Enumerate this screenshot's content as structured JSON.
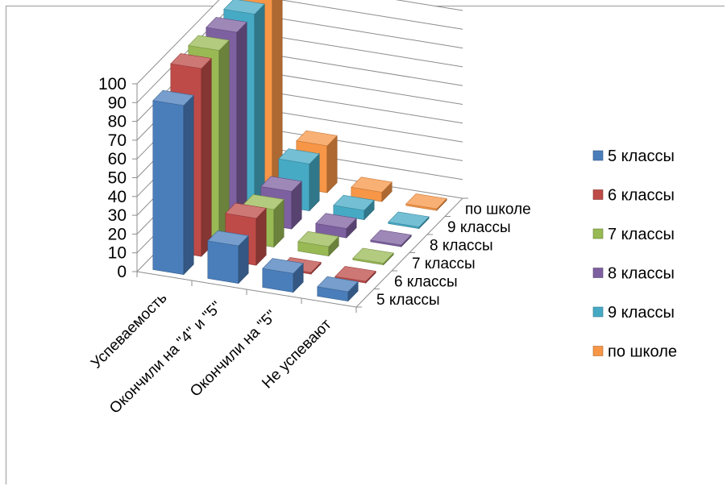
{
  "chart_data": {
    "type": "bar",
    "subtype": "3d-column",
    "categories": [
      "Успеваемость",
      "Окончили на \"4\" и \"5\"",
      "Окончили на \"5\"",
      "Не успевают"
    ],
    "series": [
      {
        "name": "5 классы",
        "values": [
          90,
          20,
          10,
          5
        ],
        "color": "#4a7ebb"
      },
      {
        "name": "6 классы",
        "values": [
          100,
          25,
          0,
          0
        ],
        "color": "#be4b48"
      },
      {
        "name": "7 классы",
        "values": [
          100,
          20,
          5,
          0
        ],
        "color": "#98b954"
      },
      {
        "name": "8 классы",
        "values": [
          100,
          20,
          5,
          0
        ],
        "color": "#7d60a0"
      },
      {
        "name": "9 классы",
        "values": [
          100,
          25,
          5,
          0
        ],
        "color": "#46aac5"
      },
      {
        "name": "по школе",
        "values": [
          100,
          25,
          5,
          0
        ],
        "color": "#f79646"
      }
    ],
    "yticks": [
      "0",
      "10",
      "20",
      "30",
      "40",
      "50",
      "60",
      "70",
      "80",
      "90",
      "100"
    ],
    "ylim": [
      0,
      100
    ],
    "grid": true,
    "legend": "right"
  }
}
